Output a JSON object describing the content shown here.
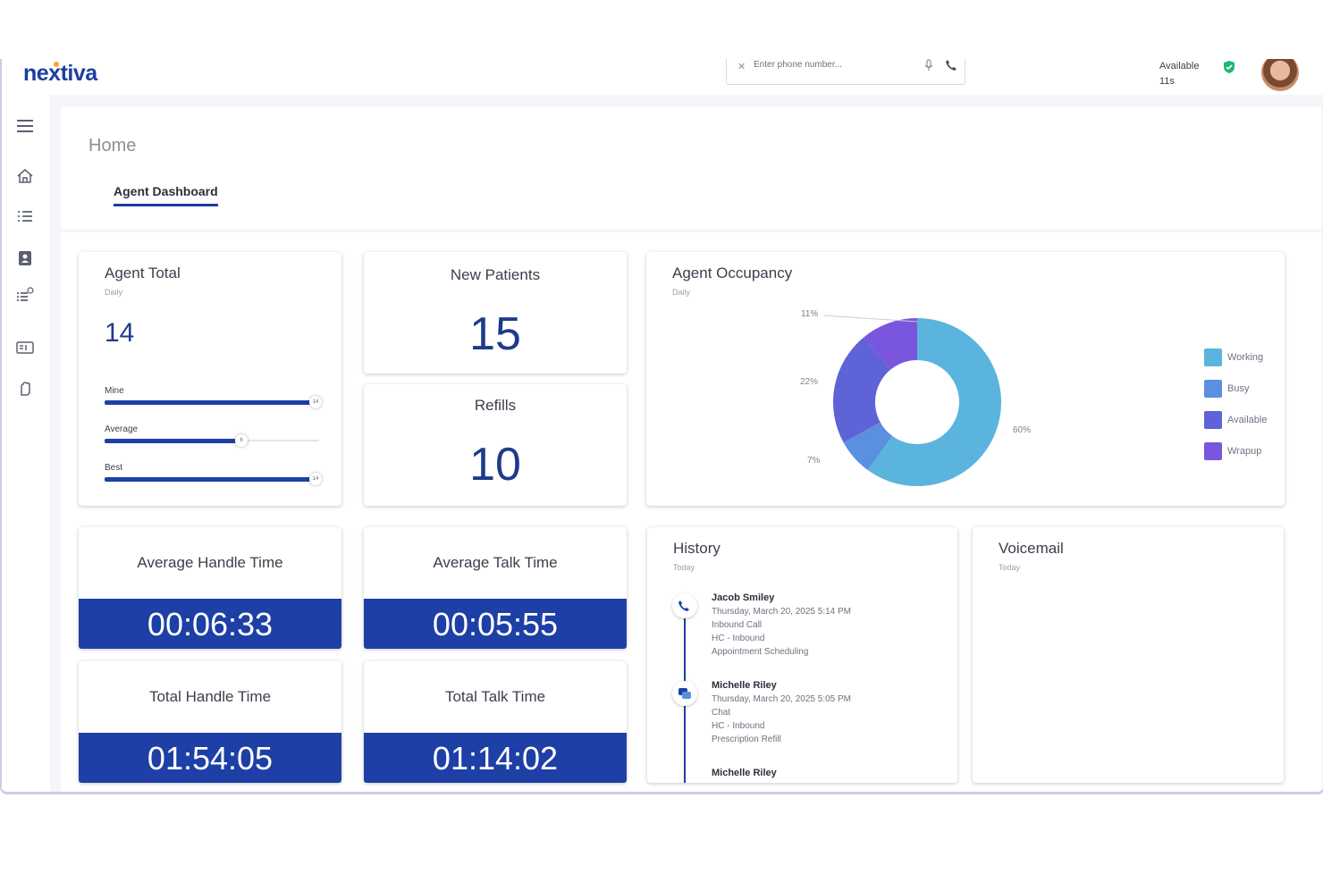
{
  "brand": {
    "logo": "nextiva"
  },
  "dialer": {
    "placeholder": "Enter phone number..."
  },
  "presence": {
    "status": "Available",
    "timer": "11s"
  },
  "colors": {
    "brand_blue": "#1d3fa6",
    "working": "#5ab4dd",
    "busy": "#5b8fe0",
    "available": "#5f63d8",
    "wrapup": "#7a55de",
    "status_green": "#22b573"
  },
  "sidebar": {
    "icons": [
      "menu-icon",
      "home-icon",
      "list-icon",
      "contacts-icon",
      "queue-list-icon",
      "card-icon",
      "hand-icon"
    ]
  },
  "page": {
    "title": "Home",
    "tab": "Agent Dashboard"
  },
  "agent_total": {
    "title": "Agent Total",
    "period": "Daily",
    "value": "14",
    "bars": [
      {
        "label": "Mine",
        "value": 14,
        "knob": "14"
      },
      {
        "label": "Average",
        "value": 6,
        "knob": "6"
      },
      {
        "label": "Best",
        "value": 14,
        "knob": "14"
      }
    ]
  },
  "new_patients": {
    "title": "New Patients",
    "value": "15"
  },
  "refills": {
    "title": "Refills",
    "value": "10"
  },
  "occupancy": {
    "title": "Agent Occupancy",
    "period": "Daily",
    "labels": {
      "working": "60%",
      "busy": "7%",
      "available": "22%",
      "wrapup": "11%"
    }
  },
  "chart_data": {
    "type": "pie",
    "title": "Agent Occupancy",
    "categories": [
      "Working",
      "Busy",
      "Available",
      "Wrapup"
    ],
    "values": [
      60,
      7,
      22,
      11
    ],
    "legend": "right"
  },
  "metrics": {
    "aht": {
      "label": "Average Handle Time",
      "value": "00:06:33"
    },
    "att": {
      "label": "Average Talk Time",
      "value": "00:05:55"
    },
    "tht": {
      "label": "Total Handle Time",
      "value": "01:54:05"
    },
    "ttt": {
      "label": "Total Talk Time",
      "value": "01:14:02"
    }
  },
  "history": {
    "title": "History",
    "period": "Today",
    "items": [
      {
        "name": "Jacob Smiley",
        "date": "Thursday, March 20, 2025 5:14 PM",
        "type": "Inbound Call",
        "queue": "HC - Inbound",
        "reason": "Appointment Scheduling"
      },
      {
        "name": "Michelle Riley",
        "date": "Thursday, March 20, 2025 5:05 PM",
        "type": "Chat",
        "queue": "HC - Inbound",
        "reason": "Prescription Refill"
      },
      {
        "name": "Michelle Riley"
      }
    ]
  },
  "voicemail": {
    "title": "Voicemail",
    "period": "Today"
  }
}
